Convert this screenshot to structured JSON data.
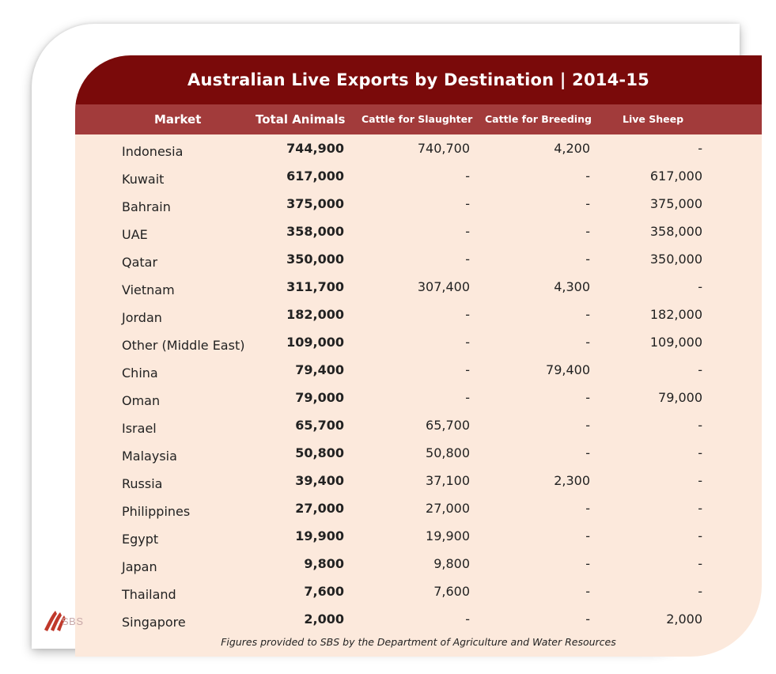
{
  "chart_data": {
    "type": "table",
    "title": "Australian Live Exports by Destination | 2014-15",
    "columns": [
      "Market",
      "Total Animals",
      "Cattle for Slaughter",
      "Cattle for Breeding",
      "Live Sheep"
    ],
    "rows": [
      [
        "Indonesia",
        "744,900",
        "740,700",
        "4,200",
        "-"
      ],
      [
        "Kuwait",
        "617,000",
        "-",
        "-",
        "617,000"
      ],
      [
        "Bahrain",
        "375,000",
        "-",
        "-",
        "375,000"
      ],
      [
        "UAE",
        "358,000",
        "-",
        "-",
        "358,000"
      ],
      [
        "Qatar",
        "350,000",
        "-",
        "-",
        "350,000"
      ],
      [
        "Vietnam",
        "311,700",
        "307,400",
        "4,300",
        "-"
      ],
      [
        "Jordan",
        "182,000",
        "-",
        "-",
        "182,000"
      ],
      [
        "Other (Middle East)",
        "109,000",
        "-",
        "-",
        "109,000"
      ],
      [
        "China",
        "79,400",
        "-",
        "79,400",
        "-"
      ],
      [
        "Oman",
        "79,000",
        "-",
        "-",
        "79,000"
      ],
      [
        "Israel",
        "65,700",
        "65,700",
        "-",
        "-"
      ],
      [
        "Malaysia",
        "50,800",
        "50,800",
        "-",
        "-"
      ],
      [
        "Russia",
        "39,400",
        "37,100",
        "2,300",
        "-"
      ],
      [
        "Philippines",
        "27,000",
        "27,000",
        "-",
        "-"
      ],
      [
        "Egypt",
        "19,900",
        "19,900",
        "-",
        "-"
      ],
      [
        "Japan",
        "9,800",
        "9,800",
        "-",
        "-"
      ],
      [
        "Thailand",
        "7,600",
        "7,600",
        "-",
        "-"
      ],
      [
        "Singapore",
        "2,000",
        "-",
        "-",
        "2,000"
      ]
    ],
    "footnote": "Figures provided to SBS by the Department of Agriculture and Water Resources"
  },
  "logo": {
    "text": "SBS",
    "icon": "sbs-logo-icon"
  },
  "colors": {
    "title_bg": "#7a0a0a",
    "header_bg": "#a23b3b",
    "table_bg": "#fce9dc",
    "header_text": "#ffffff"
  }
}
